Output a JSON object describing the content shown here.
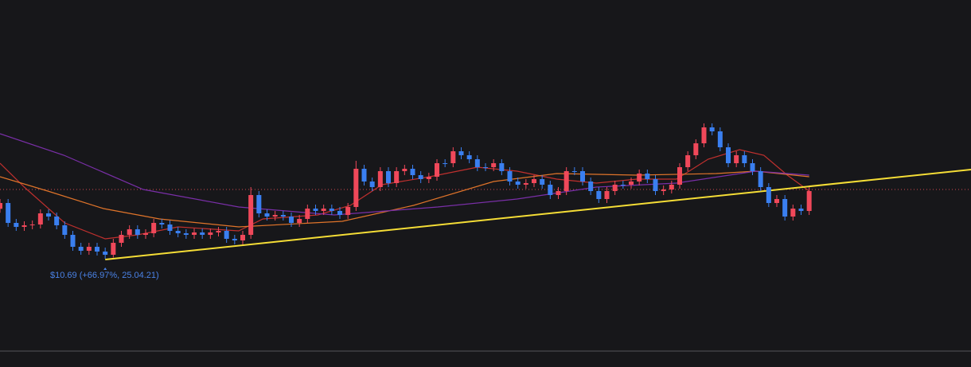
{
  "chart_data": {
    "type": "candlestick",
    "xlim": [
      0,
      120
    ],
    "ylim": [
      6.09,
      23.69
    ],
    "up_color": "#f0485a",
    "down_color": "#3a7ff0",
    "ohlc": [
      [
        13.2,
        13.69,
        13.0,
        13.49
      ],
      [
        13.49,
        13.69,
        12.29,
        12.49
      ],
      [
        12.49,
        12.69,
        12.09,
        12.29
      ],
      [
        12.29,
        12.57,
        12.09,
        12.37
      ],
      [
        12.37,
        12.61,
        12.17,
        12.41
      ],
      [
        12.41,
        13.17,
        12.21,
        12.97
      ],
      [
        12.97,
        13.17,
        12.61,
        12.81
      ],
      [
        12.81,
        13.01,
        12.17,
        12.37
      ],
      [
        12.37,
        12.57,
        11.69,
        11.89
      ],
      [
        11.89,
        12.09,
        11.09,
        11.29
      ],
      [
        11.29,
        11.49,
        10.89,
        11.09
      ],
      [
        11.09,
        11.49,
        10.89,
        11.29
      ],
      [
        11.29,
        11.49,
        10.85,
        11.05
      ],
      [
        11.05,
        11.25,
        10.69,
        10.89
      ],
      [
        10.89,
        11.69,
        10.75,
        11.49
      ],
      [
        11.49,
        12.09,
        11.29,
        11.89
      ],
      [
        11.89,
        12.37,
        11.69,
        12.17
      ],
      [
        12.17,
        12.37,
        11.69,
        11.89
      ],
      [
        11.89,
        12.17,
        11.69,
        11.97
      ],
      [
        11.97,
        12.69,
        11.77,
        12.49
      ],
      [
        12.49,
        12.69,
        12.21,
        12.41
      ],
      [
        12.41,
        12.61,
        11.89,
        12.09
      ],
      [
        12.09,
        12.29,
        11.77,
        11.97
      ],
      [
        11.97,
        12.17,
        11.69,
        11.89
      ],
      [
        11.89,
        12.21,
        11.69,
        12.01
      ],
      [
        12.01,
        12.21,
        11.69,
        11.89
      ],
      [
        11.89,
        12.21,
        11.69,
        12.01
      ],
      [
        12.01,
        12.29,
        11.81,
        12.09
      ],
      [
        12.09,
        12.29,
        11.49,
        11.69
      ],
      [
        11.69,
        11.89,
        11.41,
        11.61
      ],
      [
        11.61,
        12.09,
        11.41,
        11.89
      ],
      [
        11.89,
        14.29,
        11.69,
        13.89
      ],
      [
        13.89,
        14.09,
        12.77,
        12.97
      ],
      [
        12.97,
        13.17,
        12.61,
        12.81
      ],
      [
        12.81,
        13.09,
        12.61,
        12.89
      ],
      [
        12.89,
        13.09,
        12.61,
        12.81
      ],
      [
        12.81,
        13.01,
        12.29,
        12.49
      ],
      [
        12.49,
        12.89,
        12.29,
        12.69
      ],
      [
        12.69,
        13.41,
        12.49,
        13.21
      ],
      [
        13.21,
        13.41,
        12.89,
        13.09
      ],
      [
        13.09,
        13.41,
        12.89,
        13.21
      ],
      [
        13.21,
        13.41,
        12.89,
        13.09
      ],
      [
        13.09,
        13.29,
        12.69,
        12.89
      ],
      [
        12.89,
        13.49,
        12.69,
        13.29
      ],
      [
        13.29,
        15.61,
        13.09,
        15.21
      ],
      [
        15.21,
        15.41,
        14.37,
        14.57
      ],
      [
        14.57,
        14.77,
        14.09,
        14.29
      ],
      [
        14.29,
        15.29,
        14.09,
        15.09
      ],
      [
        15.09,
        15.29,
        14.29,
        14.49
      ],
      [
        14.49,
        15.29,
        14.29,
        15.09
      ],
      [
        15.09,
        15.41,
        14.89,
        15.21
      ],
      [
        15.21,
        15.41,
        14.69,
        14.89
      ],
      [
        14.89,
        15.09,
        14.49,
        14.69
      ],
      [
        14.69,
        15.01,
        14.49,
        14.81
      ],
      [
        14.81,
        15.69,
        14.61,
        15.49
      ],
      [
        15.49,
        15.69,
        15.29,
        15.49
      ],
      [
        15.49,
        16.29,
        15.29,
        16.09
      ],
      [
        16.09,
        16.29,
        15.69,
        15.89
      ],
      [
        15.89,
        16.09,
        15.49,
        15.69
      ],
      [
        15.69,
        15.89,
        15.09,
        15.29
      ],
      [
        15.29,
        15.49,
        15.09,
        15.29
      ],
      [
        15.29,
        15.69,
        15.09,
        15.49
      ],
      [
        15.49,
        15.69,
        14.89,
        15.09
      ],
      [
        15.09,
        15.29,
        14.37,
        14.57
      ],
      [
        14.57,
        14.77,
        14.21,
        14.41
      ],
      [
        14.41,
        14.69,
        14.21,
        14.49
      ],
      [
        14.49,
        14.89,
        14.29,
        14.69
      ],
      [
        14.69,
        14.89,
        14.21,
        14.41
      ],
      [
        14.41,
        14.61,
        13.69,
        13.89
      ],
      [
        13.89,
        14.29,
        13.69,
        14.09
      ],
      [
        14.09,
        15.29,
        13.89,
        15.09
      ],
      [
        15.09,
        15.29,
        14.89,
        15.09
      ],
      [
        15.09,
        15.29,
        14.37,
        14.57
      ],
      [
        14.57,
        14.77,
        13.89,
        14.09
      ],
      [
        14.09,
        14.29,
        13.49,
        13.69
      ],
      [
        13.69,
        14.29,
        13.49,
        14.09
      ],
      [
        14.09,
        14.61,
        13.89,
        14.41
      ],
      [
        14.41,
        14.61,
        14.21,
        14.41
      ],
      [
        14.41,
        14.77,
        14.21,
        14.57
      ],
      [
        14.57,
        15.17,
        14.37,
        14.97
      ],
      [
        14.97,
        15.17,
        14.49,
        14.69
      ],
      [
        14.69,
        14.89,
        13.89,
        14.09
      ],
      [
        14.09,
        14.37,
        13.89,
        14.17
      ],
      [
        14.17,
        14.61,
        13.97,
        14.41
      ],
      [
        14.41,
        15.49,
        14.21,
        15.29
      ],
      [
        15.29,
        16.09,
        15.09,
        15.89
      ],
      [
        15.89,
        16.69,
        15.69,
        16.49
      ],
      [
        16.49,
        17.49,
        16.29,
        17.29
      ],
      [
        17.29,
        17.49,
        16.89,
        17.09
      ],
      [
        17.09,
        17.29,
        16.09,
        16.29
      ],
      [
        16.29,
        16.49,
        15.29,
        15.49
      ],
      [
        15.49,
        16.09,
        15.29,
        15.89
      ],
      [
        15.89,
        16.09,
        15.29,
        15.49
      ],
      [
        15.49,
        15.69,
        14.89,
        15.09
      ],
      [
        15.09,
        15.29,
        14.09,
        14.29
      ],
      [
        14.29,
        14.49,
        13.29,
        13.49
      ],
      [
        13.49,
        13.89,
        13.29,
        13.69
      ],
      [
        13.69,
        13.89,
        12.61,
        12.81
      ],
      [
        12.81,
        13.41,
        12.61,
        13.21
      ],
      [
        13.21,
        13.41,
        12.89,
        13.09
      ],
      [
        13.09,
        14.29,
        12.89,
        14.09
      ]
    ],
    "lines": [
      {
        "color": "#c0302e",
        "x": [
          0,
          3,
          8,
          13,
          17,
          22,
          29.5,
          32.5,
          39.3,
          43.3,
          47.2,
          53.1,
          59,
          63.9,
          68.8,
          73.7,
          78.7,
          83.6,
          87.5,
          91.4,
          94.4,
          97.3,
          100
        ],
        "values": [
          15.49,
          14.29,
          12.49,
          11.69,
          11.89,
          12.29,
          12.09,
          12.69,
          12.89,
          13.37,
          14.41,
          14.81,
          15.29,
          15.09,
          14.69,
          14.49,
          14.69,
          14.69,
          15.69,
          16.17,
          15.89,
          14.89,
          14.09
        ]
      },
      {
        "color": "#e0742a",
        "x": [
          0,
          5.9,
          12.8,
          19.7,
          29.5,
          42.3,
          51.1,
          61,
          68.8,
          78.7,
          88.5,
          93.4,
          100
        ],
        "values": [
          14.81,
          14.09,
          13.21,
          12.69,
          12.29,
          12.57,
          13.37,
          14.57,
          14.97,
          14.89,
          14.97,
          15.09,
          14.81
        ]
      },
      {
        "color": "#7a2fa8",
        "x": [
          0,
          7.9,
          17.7,
          29.5,
          41.3,
          54.1,
          63.9,
          73.7,
          83.6,
          93.4,
          100
        ],
        "values": [
          16.97,
          15.89,
          14.17,
          13.29,
          12.89,
          13.29,
          13.69,
          14.29,
          14.49,
          15.09,
          14.89
        ]
      },
      {
        "color": "#f5dd36",
        "x": [
          13,
          120
        ],
        "values": [
          10.65,
          15.17
        ]
      }
    ],
    "hline": {
      "value": 14.17,
      "color": "#d04a50"
    },
    "annotation": {
      "text": "$10.69 (+66.97%, 25.04.21)",
      "x": 13,
      "color": "#4a82e6"
    }
  }
}
